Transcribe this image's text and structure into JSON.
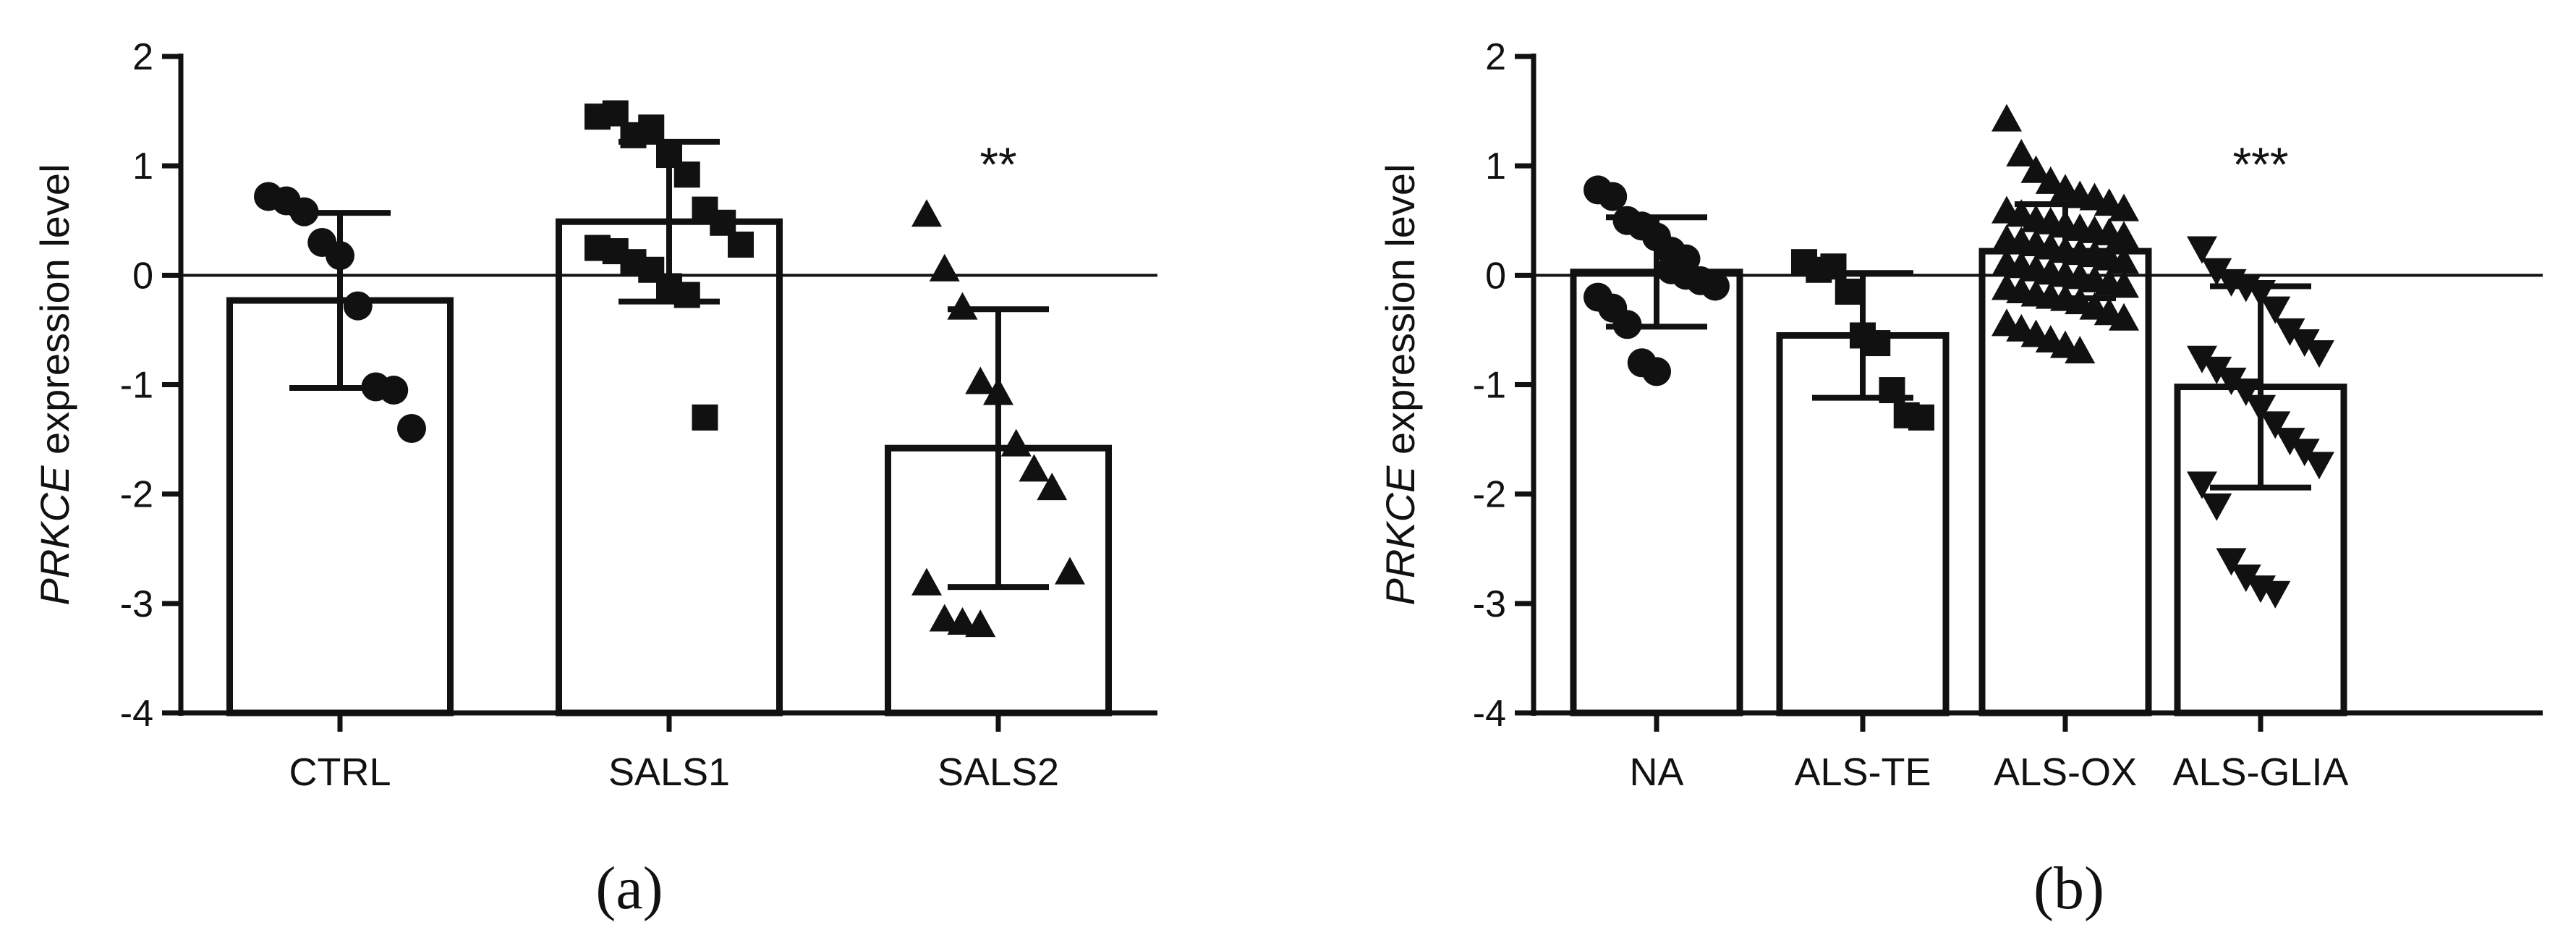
{
  "chart_data": [
    {
      "type": "bar",
      "panel_label": "(a)",
      "ylabel_italic": "PRKCE",
      "ylabel_rest": " expression level",
      "ylim": [
        -4,
        2
      ],
      "yticks": [
        "-4",
        "-3",
        "-2",
        "-1",
        "0",
        "1",
        "2"
      ],
      "yticks_values": [
        -4,
        -3,
        -2,
        -1,
        0,
        1,
        2
      ],
      "categories": [
        "CTRL",
        "SALS1",
        "SALS2"
      ],
      "means": [
        -0.23,
        0.49,
        -1.58
      ],
      "sd": [
        0.8,
        0.73,
        1.27
      ],
      "significance": [
        "",
        "",
        "**"
      ],
      "marker": [
        "circle",
        "square",
        "triangle-up"
      ],
      "points": [
        [
          0.72,
          0.68,
          0.58,
          0.3,
          0.18,
          -0.28,
          -1.02,
          -1.05,
          -1.4
        ],
        [
          1.45,
          1.48,
          1.28,
          1.35,
          1.1,
          0.92,
          0.6,
          0.48,
          0.28,
          0.25,
          0.22,
          0.12,
          0.05,
          -0.1,
          -0.18,
          -1.3
        ],
        [
          0.55,
          0.05,
          -0.3,
          -0.98,
          -1.08,
          -1.55,
          -1.78,
          -1.95,
          -2.72,
          -2.82,
          -3.15,
          -3.18,
          -3.2
        ]
      ]
    },
    {
      "type": "bar",
      "panel_label": "(b)",
      "ylabel_italic": "PRKCE",
      "ylabel_rest": " expression level",
      "ylim": [
        -4,
        2
      ],
      "yticks": [
        "-4",
        "-3",
        "-2",
        "-1",
        "0",
        "1",
        "2"
      ],
      "yticks_values": [
        -4,
        -3,
        -2,
        -1,
        0,
        1,
        2
      ],
      "categories": [
        "NA",
        "ALS-TE",
        "ALS-OX",
        "ALS-GLIA"
      ],
      "means": [
        0.03,
        -0.55,
        0.22,
        -1.02
      ],
      "sd": [
        0.5,
        0.57,
        0.43,
        0.92
      ],
      "significance": [
        "",
        "",
        "",
        "***"
      ],
      "marker": [
        "circle",
        "square",
        "triangle-up",
        "triangle-down"
      ],
      "points": [
        [
          0.78,
          0.72,
          0.5,
          0.45,
          0.35,
          0.05,
          0.0,
          -0.05,
          -0.1,
          -0.2,
          -0.3,
          -0.45,
          -0.8,
          -0.88,
          0.22,
          0.15
        ],
        [
          0.12,
          0.05,
          0.08,
          -0.15,
          -0.55,
          -0.62,
          -1.05,
          -1.28,
          -1.3
        ],
        [
          1.42,
          1.1,
          0.95,
          0.85,
          0.78,
          0.72,
          0.7,
          0.65,
          0.6,
          0.58,
          0.55,
          0.5,
          0.48,
          0.45,
          0.42,
          0.4,
          0.38,
          0.35,
          0.32,
          0.3,
          0.28,
          0.25,
          0.22,
          0.2,
          0.18,
          0.15,
          0.12,
          0.1,
          0.08,
          0.05,
          0.02,
          0.0,
          -0.02,
          -0.05,
          -0.08,
          -0.1,
          -0.12,
          -0.15,
          -0.18,
          -0.2,
          -0.22,
          -0.25,
          -0.3,
          -0.35,
          -0.4,
          -0.45,
          -0.5,
          -0.55,
          -0.6,
          -0.65,
          -0.7
        ],
        [
          0.25,
          0.05,
          -0.05,
          -0.1,
          -0.15,
          -0.3,
          -0.5,
          -0.6,
          -0.7,
          -0.75,
          -0.85,
          -0.95,
          -1.05,
          -1.2,
          -1.35,
          -1.5,
          -1.6,
          -1.72,
          -1.9,
          -2.1,
          -2.6,
          -2.75,
          -2.85,
          -2.9
        ]
      ]
    }
  ]
}
